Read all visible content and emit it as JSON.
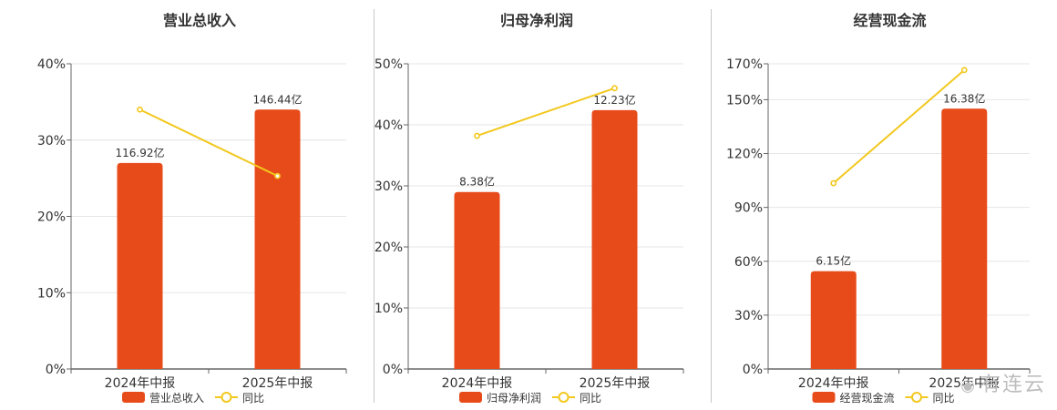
{
  "colors": {
    "bar": "#E84B1A",
    "line": "#F2C81E",
    "grid": "#e6e6e6",
    "axis": "#666666"
  },
  "legend_line_label": "同比",
  "watermark": "有连云",
  "chart_data": [
    {
      "type": "bar",
      "title": "营业总收入",
      "categories": [
        "2024年中报",
        "2025年中报"
      ],
      "y_axis": {
        "ticks": [
          "0%",
          "10%",
          "20%",
          "30%",
          "40%"
        ],
        "ylim": [
          0,
          40
        ]
      },
      "series": [
        {
          "name": "营业总收入",
          "kind": "bar",
          "values": [
            27.0,
            34.0
          ],
          "data_labels": [
            "116.92亿",
            "146.44亿"
          ]
        },
        {
          "name": "同比",
          "kind": "line",
          "values": [
            34.0,
            25.3
          ]
        }
      ],
      "grid": true,
      "legend": "bottom"
    },
    {
      "type": "bar",
      "title": "归母净利润",
      "categories": [
        "2024年中报",
        "2025年中报"
      ],
      "y_axis": {
        "ticks": [
          "0%",
          "10%",
          "20%",
          "30%",
          "40%",
          "50%"
        ],
        "ylim": [
          0,
          50
        ]
      },
      "series": [
        {
          "name": "归母净利润",
          "kind": "bar",
          "values": [
            29.0,
            42.4
          ],
          "data_labels": [
            "8.38亿",
            "12.23亿"
          ]
        },
        {
          "name": "同比",
          "kind": "line",
          "values": [
            38.2,
            46.0
          ]
        }
      ],
      "grid": true,
      "legend": "bottom"
    },
    {
      "type": "bar",
      "title": "经营现金流",
      "categories": [
        "2024年中报",
        "2025年中报"
      ],
      "y_axis": {
        "ticks": [
          "0%",
          "30%",
          "60%",
          "90%",
          "120%",
          "150%",
          "170%"
        ],
        "ylim": [
          0,
          170
        ]
      },
      "series": [
        {
          "name": "经营现金流",
          "kind": "bar",
          "values": [
            54.5,
            145.0
          ],
          "data_labels": [
            "6.15亿",
            "16.38亿"
          ]
        },
        {
          "name": "同比",
          "kind": "line",
          "values": [
            103.5,
            166.5
          ]
        }
      ],
      "grid": true,
      "legend": "bottom"
    }
  ]
}
